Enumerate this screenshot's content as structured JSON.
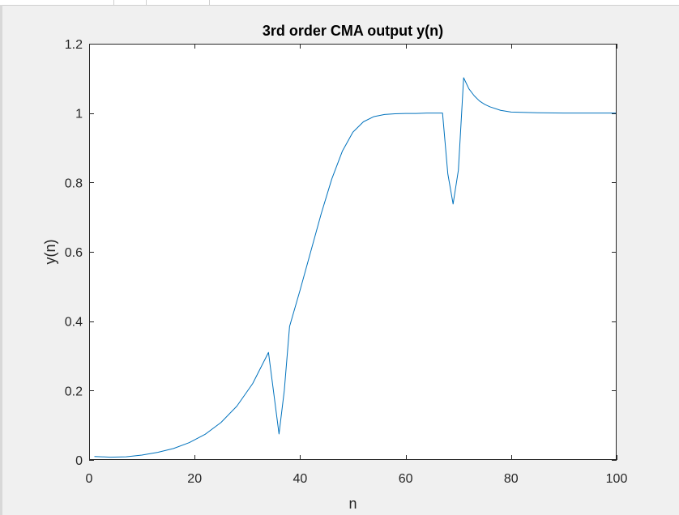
{
  "chart_data": {
    "type": "line",
    "title": "3rd order CMA output y(n)",
    "xlabel": "n",
    "ylabel": "y(n)",
    "xlim": [
      0,
      100
    ],
    "ylim": [
      0,
      1.2
    ],
    "xticks": [
      0,
      20,
      40,
      60,
      80,
      100
    ],
    "yticks": [
      0,
      0.2,
      0.4,
      0.6,
      0.8,
      1,
      1.2
    ],
    "xtick_labels": [
      "0",
      "20",
      "40",
      "60",
      "80",
      "100"
    ],
    "ytick_labels": [
      "0",
      "0.2",
      "0.4",
      "0.6",
      "0.8",
      "1",
      "1.2"
    ],
    "grid": false,
    "line_color": "#0072bd",
    "series": [
      {
        "x": [
          1,
          4,
          7,
          10,
          13,
          16,
          19,
          22,
          25,
          28,
          31,
          34,
          36,
          37,
          38,
          40,
          42,
          44,
          46,
          48,
          50,
          52,
          54,
          56,
          58,
          60,
          62,
          64,
          66,
          67,
          68,
          69,
          70,
          71,
          72,
          73,
          74,
          75,
          76,
          78,
          80,
          85,
          90,
          95,
          100
        ],
        "y": [
          0.01,
          0.008,
          0.009,
          0.014,
          0.022,
          0.033,
          0.05,
          0.074,
          0.108,
          0.155,
          0.22,
          0.31,
          0.075,
          0.2,
          0.385,
          0.49,
          0.6,
          0.71,
          0.81,
          0.89,
          0.945,
          0.975,
          0.99,
          0.996,
          0.998,
          0.999,
          0.999,
          1.0,
          1.0,
          1.0,
          0.825,
          0.738,
          0.835,
          1.102,
          1.07,
          1.05,
          1.035,
          1.025,
          1.018,
          1.008,
          1.003,
          1.001,
          1.0,
          1.0,
          1.0
        ]
      }
    ]
  }
}
